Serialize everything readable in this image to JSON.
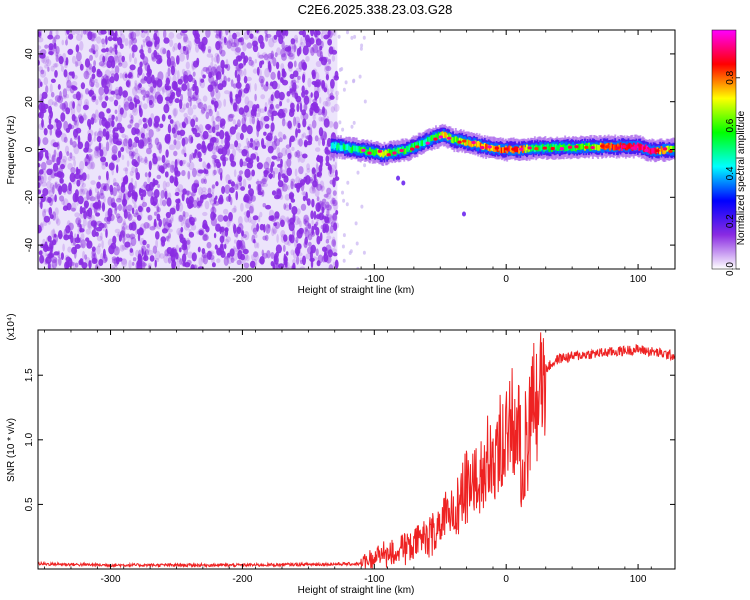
{
  "figure": {
    "title": "C2E6.2025.338.23.03.G28"
  },
  "chart_data": [
    {
      "type": "heatmap",
      "xlabel": "Height of straight line (km)",
      "ylabel": "Frequency (Hz)",
      "xlim": [
        -355,
        128
      ],
      "ylim": [
        -50,
        50
      ],
      "x_ticks": [
        -300,
        -200,
        -100,
        0,
        100
      ],
      "y_ticks": [
        -40,
        -20,
        0,
        20,
        40
      ],
      "colorbar": {
        "label": "Normalized spectral amplitude",
        "range": [
          0,
          1
        ],
        "ticks": [
          "0.0",
          "0.2",
          "0.4",
          "0.6",
          "0.8"
        ],
        "colormap": [
          "#ffffff",
          "#8a2be2",
          "#0000ff",
          "#00ffff",
          "#00ff00",
          "#ffff00",
          "#ff0000",
          "#ff00ff"
        ]
      },
      "noise_region_x": [
        -355,
        -128
      ],
      "noise_color": "#8a2be2",
      "ridge": {
        "x": [
          -133,
          -120,
          -110,
          -100,
          -95,
          -85,
          -75,
          -65,
          -55,
          -48,
          -40,
          -30,
          -20,
          -10,
          0,
          10,
          20,
          40,
          60,
          80,
          100,
          110,
          128
        ],
        "y": [
          1.5,
          0.5,
          -0.5,
          -1,
          -2,
          -1,
          0,
          2.5,
          5,
          6,
          4,
          3,
          1.5,
          0.5,
          0,
          0,
          0.5,
          0.8,
          1,
          1.2,
          1.2,
          -0.5,
          0
        ],
        "amplitude": [
          0.45,
          0.5,
          0.55,
          0.6,
          0.65,
          0.55,
          0.55,
          0.5,
          0.55,
          0.75,
          0.6,
          0.7,
          0.8,
          0.75,
          0.85,
          0.8,
          0.55,
          0.55,
          0.6,
          0.85,
          0.95,
          0.9,
          0.55
        ]
      }
    },
    {
      "type": "line",
      "xlabel": "Height of straight line (km)",
      "ylabel": "SNR (10 * v/v)",
      "y_multiplier": "(x10⁴)",
      "xlim": [
        -355,
        128
      ],
      "ylim": [
        0,
        1.85
      ],
      "x_ticks": [
        -300,
        -200,
        -100,
        0,
        100
      ],
      "y_ticks": [
        0.5,
        1.0,
        1.5
      ],
      "y_tick_labels": [
        "0.5",
        "1.0",
        "1.5"
      ],
      "line_color": "#ee2222",
      "series": [
        {
          "x": [
            -355,
            -300,
            -200,
            -110,
            -105,
            -100,
            -90,
            -80,
            -70,
            -60,
            -50,
            -40,
            -30,
            -20,
            -10,
            0,
            5,
            10,
            12,
            15,
            20,
            25,
            30,
            40,
            60,
            80,
            100,
            128
          ],
          "y": [
            0.04,
            0.03,
            0.03,
            0.04,
            0.07,
            0.1,
            0.13,
            0.16,
            0.2,
            0.26,
            0.35,
            0.5,
            0.65,
            0.8,
            0.9,
            1.05,
            1.15,
            1.25,
            0.5,
            1.1,
            1.35,
            1.45,
            1.55,
            1.63,
            1.66,
            1.68,
            1.7,
            1.65
          ]
        }
      ]
    }
  ]
}
